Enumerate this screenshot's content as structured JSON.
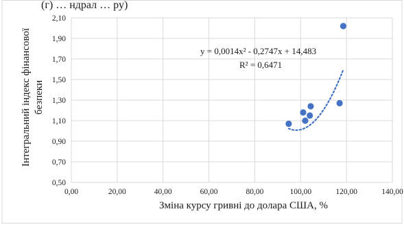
{
  "chart_data": {
    "type": "scatter",
    "top_caption": "(г) … ндрал … ру)",
    "xlabel": "Зміна курсу  гривні до долара США, %",
    "ylabel": "Інтегральний індекс фінансової безпеки",
    "ylabel_lines": [
      "Інтегральний індекс фінансової",
      "безпеки"
    ],
    "xlim": [
      0,
      140
    ],
    "ylim": [
      0.5,
      2.1
    ],
    "x_ticks": [
      0,
      20,
      40,
      60,
      80,
      100,
      120,
      140
    ],
    "y_ticks": [
      0.5,
      0.7,
      0.9,
      1.1,
      1.3,
      1.5,
      1.7,
      1.9,
      2.1
    ],
    "x_tick_labels": [
      "0,00",
      "20,00",
      "40,00",
      "60,00",
      "80,00",
      "100,00",
      "120,00",
      "140,00"
    ],
    "y_tick_labels": [
      "0,50",
      "0,70",
      "0,90",
      "1,10",
      "1,30",
      "1,50",
      "1,70",
      "1,90",
      "2,10"
    ],
    "grid": true,
    "legend": "none",
    "points": [
      {
        "x": 94.8,
        "y": 1.07
      },
      {
        "x": 101.1,
        "y": 1.18
      },
      {
        "x": 102.0,
        "y": 1.1
      },
      {
        "x": 104.0,
        "y": 1.15
      },
      {
        "x": 104.4,
        "y": 1.24
      },
      {
        "x": 117.0,
        "y": 1.27
      },
      {
        "x": 118.6,
        "y": 2.02
      }
    ],
    "trendline": {
      "type": "polynomial",
      "coefficients": [
        0.0014,
        -0.2747,
        14.483
      ],
      "x_range": [
        94.8,
        118.6
      ],
      "equation_text": "y = 0,0014x² - 0,2747x + 14,483",
      "r2_text": "R² = 0,6471"
    },
    "colors": {
      "marker": "#4472c4",
      "trendline": "#4472c4",
      "grid": "#d9d9d9",
      "frame": "#d9d9d9"
    }
  }
}
